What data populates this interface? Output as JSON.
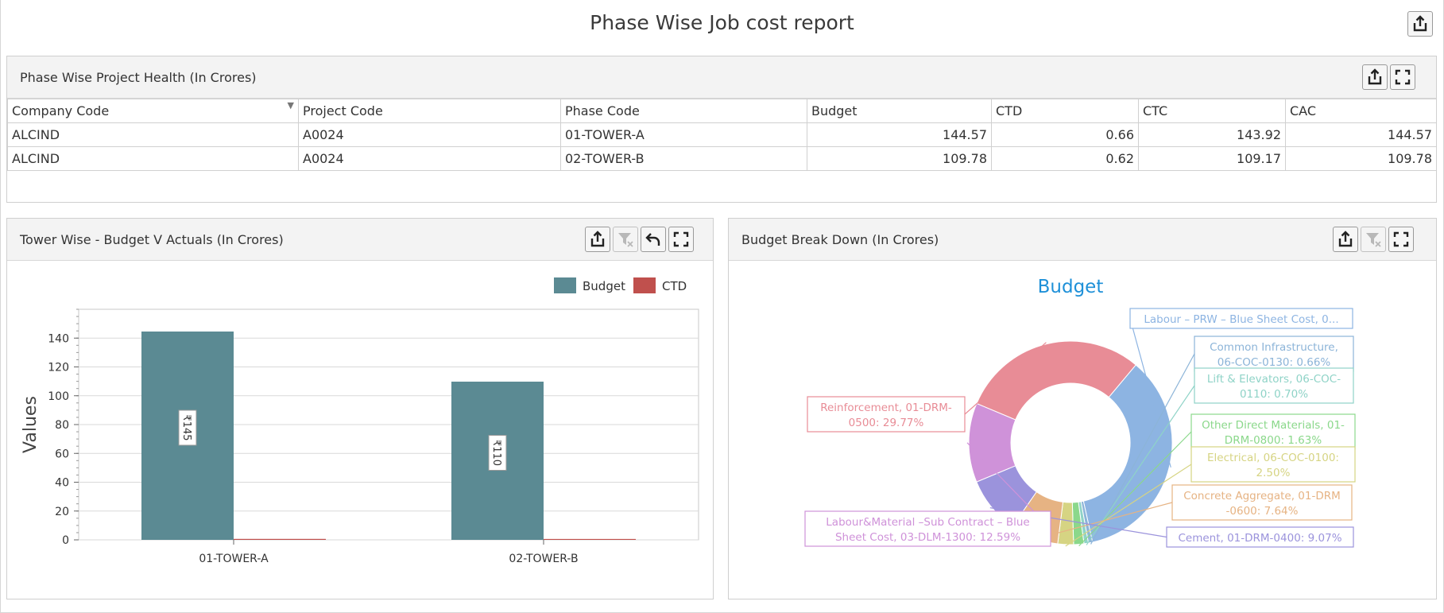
{
  "dashboard": {
    "title": "Phase Wise Job cost report",
    "export_icon": "export-icon"
  },
  "grid_panel": {
    "title": "Phase Wise Project Health (In Crores)",
    "icons": [
      "export-icon",
      "maximize-icon"
    ],
    "columns": [
      "Company Code",
      "Project Code",
      "Phase Code",
      "Budget",
      "CTD",
      "CTC",
      "CAC"
    ],
    "rows": [
      [
        "ALCIND",
        "A0024",
        "01-TOWER-A",
        "144.57",
        "0.66",
        "143.92",
        "144.57"
      ],
      [
        "ALCIND",
        "A0024",
        "02-TOWER-B",
        "109.78",
        "0.62",
        "109.17",
        "109.78"
      ]
    ]
  },
  "bar_panel": {
    "title": "Tower Wise - Budget V Actuals (In Crores)",
    "icons": [
      "export-icon",
      "clear-filter-icon",
      "undo-icon",
      "maximize-icon"
    ]
  },
  "pie_panel": {
    "title": "Budget Break Down (In Crores)",
    "icons": [
      "export-icon",
      "clear-filter-icon",
      "maximize-icon"
    ]
  },
  "colors": {
    "budget": "#5b8a93",
    "ctd": "#c0504d",
    "pie_title": "#1e90d8"
  },
  "chart_data": [
    {
      "type": "bar",
      "categories": [
        "01-TOWER-A",
        "02-TOWER-B"
      ],
      "series": [
        {
          "name": "Budget",
          "values": [
            144.57,
            109.78
          ],
          "labels": [
            "₹145",
            "₹110"
          ],
          "color": "#5b8a93"
        },
        {
          "name": "CTD",
          "values": [
            0.66,
            0.62
          ],
          "color": "#c0504d"
        }
      ],
      "ylabel": "Values",
      "ylim": [
        0,
        160
      ],
      "yticks": [
        0,
        20,
        40,
        60,
        80,
        100,
        120,
        140
      ],
      "legend": "top-right",
      "grid": true
    },
    {
      "type": "pie",
      "title": "Budget",
      "donut": true,
      "slices": [
        {
          "label": "Labour – PRW – Blue Sheet Cost, 0...",
          "value": 35.39,
          "color": "#8db4e2"
        },
        {
          "label": "Common Infrastructure, 06-COC-0130: 0.66%",
          "value": 0.66,
          "color": "#8cb4d8"
        },
        {
          "label": "Lift & Elevators, 06-COC-0110: 0.70%",
          "value": 0.7,
          "color": "#8fd3c7"
        },
        {
          "label": "Other Direct Materials, 01-DRM-0800: 1.63%",
          "value": 1.63,
          "color": "#8bd88b"
        },
        {
          "label": "Electrical, 06-COC-0100: 2.50%",
          "value": 2.5,
          "color": "#d6d483"
        },
        {
          "label": "Concrete Aggregate, 01-DRM-0600: 7.64%",
          "value": 7.64,
          "color": "#e6b383"
        },
        {
          "label": "Cement, 01-DRM-0400: 9.07%",
          "value": 9.07,
          "color": "#9b93dc"
        },
        {
          "label": "Labour&Material –Sub Contract – Blue Sheet Cost, 03-DLM-1300: 12.59%",
          "value": 12.59,
          "color": "#cf92d9"
        },
        {
          "label": "Reinforcement, 01-DRM-0500: 29.77%",
          "value": 29.77,
          "color": "#e88c96"
        }
      ],
      "label_lines": [
        [
          "Labour – PRW – Blue Sheet Cost, 0..."
        ],
        [
          "Common Infrastructure,",
          "06-COC-0130: 0.66%"
        ],
        [
          "Lift & Elevators, 06-COC-",
          "0110: 0.70%"
        ],
        [
          "Other Direct Materials, 01-",
          "DRM-0800: 1.63%"
        ],
        [
          "Electrical, 06-COC-0100:",
          "2.50%"
        ],
        [
          "Concrete Aggregate, 01-DRM",
          "-0600: 7.64%"
        ],
        [
          "Cement, 01-DRM-0400: 9.07%"
        ],
        [
          "Labour&Material –Sub Contract – Blue",
          "Sheet Cost, 03-DLM-1300: 12.59%"
        ],
        [
          "Reinforcement, 01-DRM-",
          "0500: 29.77%"
        ]
      ]
    }
  ]
}
